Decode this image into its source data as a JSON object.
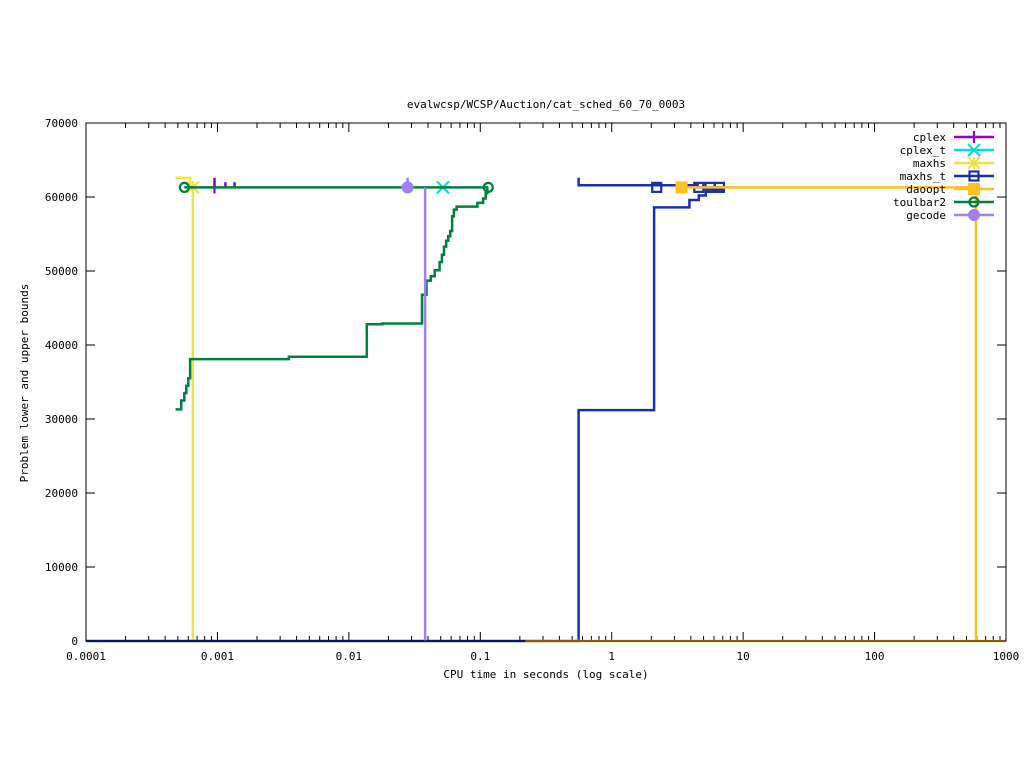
{
  "chart_data": {
    "type": "line",
    "title": "evalwcsp/WCSP/Auction/cat_sched_60_70_0003",
    "xlabel": "CPU time in seconds (log scale)",
    "ylabel": "Problem lower and upper bounds",
    "x_scale": "log",
    "xlim": [
      0.0001,
      1000
    ],
    "ylim": [
      0,
      70000
    ],
    "x_ticks": [
      {
        "value": 0.0001,
        "label": "0.0001"
      },
      {
        "value": 0.001,
        "label": "0.001"
      },
      {
        "value": 0.01,
        "label": "0.01"
      },
      {
        "value": 0.1,
        "label": "0.1"
      },
      {
        "value": 1,
        "label": "1"
      },
      {
        "value": 10,
        "label": "10"
      },
      {
        "value": 100,
        "label": "100"
      },
      {
        "value": 1000,
        "label": "1000"
      }
    ],
    "y_ticks": [
      {
        "value": 0,
        "label": "0"
      },
      {
        "value": 10000,
        "label": "10000"
      },
      {
        "value": 20000,
        "label": "20000"
      },
      {
        "value": 30000,
        "label": "30000"
      },
      {
        "value": 40000,
        "label": "40000"
      },
      {
        "value": 50000,
        "label": "50000"
      },
      {
        "value": 60000,
        "label": "60000"
      },
      {
        "value": 70000,
        "label": "70000"
      }
    ],
    "grid": false,
    "legend_position": "top-right",
    "series": [
      {
        "name": "cplex",
        "color": "#9400d3",
        "marker": "plus",
        "lines": [
          [
            [
              0.00095,
              62600
            ],
            [
              0.00095,
              61300
            ]
          ],
          [
            [
              0.00115,
              62000
            ],
            [
              0.00115,
              61300
            ]
          ],
          [
            [
              0.00135,
              62000
            ],
            [
              0.00135,
              61300
            ]
          ]
        ],
        "markers": [
          [
            0.00095,
            61300
          ]
        ]
      },
      {
        "name": "cplex_t",
        "color": "#00e0e0",
        "marker": "cross",
        "lines": [],
        "markers": [
          [
            0.052,
            61300
          ]
        ]
      },
      {
        "name": "maxhs",
        "color": "#f0e442",
        "marker": "star",
        "lines": [
          [
            [
              0.00048,
              62600
            ],
            [
              0.00062,
              62600
            ],
            [
              0.00062,
              61300
            ]
          ],
          [
            [
              0.00065,
              61300
            ],
            [
              0.00065,
              0
            ]
          ]
        ],
        "markers": [
          [
            0.00065,
            61300
          ]
        ]
      },
      {
        "name": "maxhs_t",
        "color": "#1a2eb0",
        "marker": "square",
        "lines": [
          [
            [
              5e-05,
              0
            ],
            [
              0.56,
              0
            ]
          ],
          [
            [
              0.56,
              0
            ],
            [
              0.56,
              31200
            ],
            [
              2.1,
              31200
            ],
            [
              2.1,
              58600
            ],
            [
              3.9,
              58600
            ],
            [
              3.9,
              59600
            ],
            [
              4.6,
              59600
            ],
            [
              4.6,
              60200
            ],
            [
              5.2,
              60200
            ],
            [
              5.2,
              61000
            ],
            [
              7.0,
              61000
            ],
            [
              7.0,
              61300
            ]
          ],
          [
            [
              0.56,
              62600
            ],
            [
              0.56,
              61600
            ],
            [
              4.5,
              61600
            ],
            [
              4.5,
              61300
            ],
            [
              7.2,
              61300
            ]
          ]
        ],
        "markers": [
          [
            2.2,
            61300
          ],
          [
            4.6,
            61300
          ],
          [
            5.6,
            61300
          ],
          [
            6.6,
            61300
          ]
        ]
      },
      {
        "name": "daoopt",
        "color": "#ffc020",
        "marker": "filled-square",
        "lines": [
          [
            [
              3.4,
              61300
            ],
            [
              590,
              61300
            ]
          ],
          [
            [
              590,
              61300
            ],
            [
              590,
              0
            ]
          ],
          [
            [
              0.22,
              0
            ],
            [
              1000,
              0
            ]
          ]
        ],
        "markers": [
          [
            3.4,
            61300
          ]
        ]
      },
      {
        "name": "toulbar2",
        "color": "#007f3f",
        "marker": "circle",
        "lines": [
          [
            [
              0.00048,
              31300
            ],
            [
              0.00053,
              31300
            ],
            [
              0.00053,
              32500
            ],
            [
              0.00056,
              32500
            ],
            [
              0.00056,
              33500
            ],
            [
              0.00058,
              33500
            ],
            [
              0.00058,
              34500
            ],
            [
              0.0006,
              34500
            ],
            [
              0.0006,
              35500
            ],
            [
              0.00062,
              35500
            ],
            [
              0.00062,
              38100
            ],
            [
              0.0035,
              38100
            ],
            [
              0.0035,
              38400
            ],
            [
              0.0137,
              38400
            ],
            [
              0.0137,
              42800
            ],
            [
              0.018,
              42800
            ],
            [
              0.018,
              42900
            ],
            [
              0.036,
              42900
            ],
            [
              0.036,
              46800
            ],
            [
              0.039,
              46800
            ],
            [
              0.039,
              48700
            ],
            [
              0.042,
              48700
            ],
            [
              0.042,
              49300
            ],
            [
              0.045,
              49300
            ],
            [
              0.045,
              50100
            ],
            [
              0.049,
              50100
            ],
            [
              0.049,
              51200
            ],
            [
              0.051,
              51200
            ],
            [
              0.051,
              52200
            ],
            [
              0.053,
              52200
            ],
            [
              0.053,
              53300
            ],
            [
              0.055,
              53300
            ],
            [
              0.055,
              54100
            ],
            [
              0.057,
              54100
            ],
            [
              0.057,
              54700
            ],
            [
              0.059,
              54700
            ],
            [
              0.059,
              55400
            ],
            [
              0.061,
              55400
            ],
            [
              0.061,
              57400
            ],
            [
              0.063,
              57400
            ],
            [
              0.063,
              58300
            ],
            [
              0.066,
              58300
            ],
            [
              0.066,
              58700
            ],
            [
              0.095,
              58700
            ],
            [
              0.095,
              59200
            ],
            [
              0.105,
              59200
            ],
            [
              0.105,
              59800
            ],
            [
              0.11,
              59800
            ],
            [
              0.11,
              60500
            ],
            [
              0.113,
              60500
            ],
            [
              0.113,
              61300
            ]
          ],
          [
            [
              0.00056,
              61300
            ],
            [
              0.115,
              61300
            ]
          ]
        ],
        "markers": [
          [
            0.00056,
            61300
          ],
          [
            0.115,
            61300
          ]
        ]
      },
      {
        "name": "gecode",
        "color": "#a080f0",
        "marker": "filled-circle",
        "lines": [
          [
            [
              0.028,
              62600
            ],
            [
              0.028,
              61300
            ]
          ],
          [
            [
              0.038,
              61300
            ],
            [
              0.038,
              0
            ]
          ]
        ],
        "markers": [
          [
            0.028,
            61300
          ]
        ]
      }
    ]
  }
}
